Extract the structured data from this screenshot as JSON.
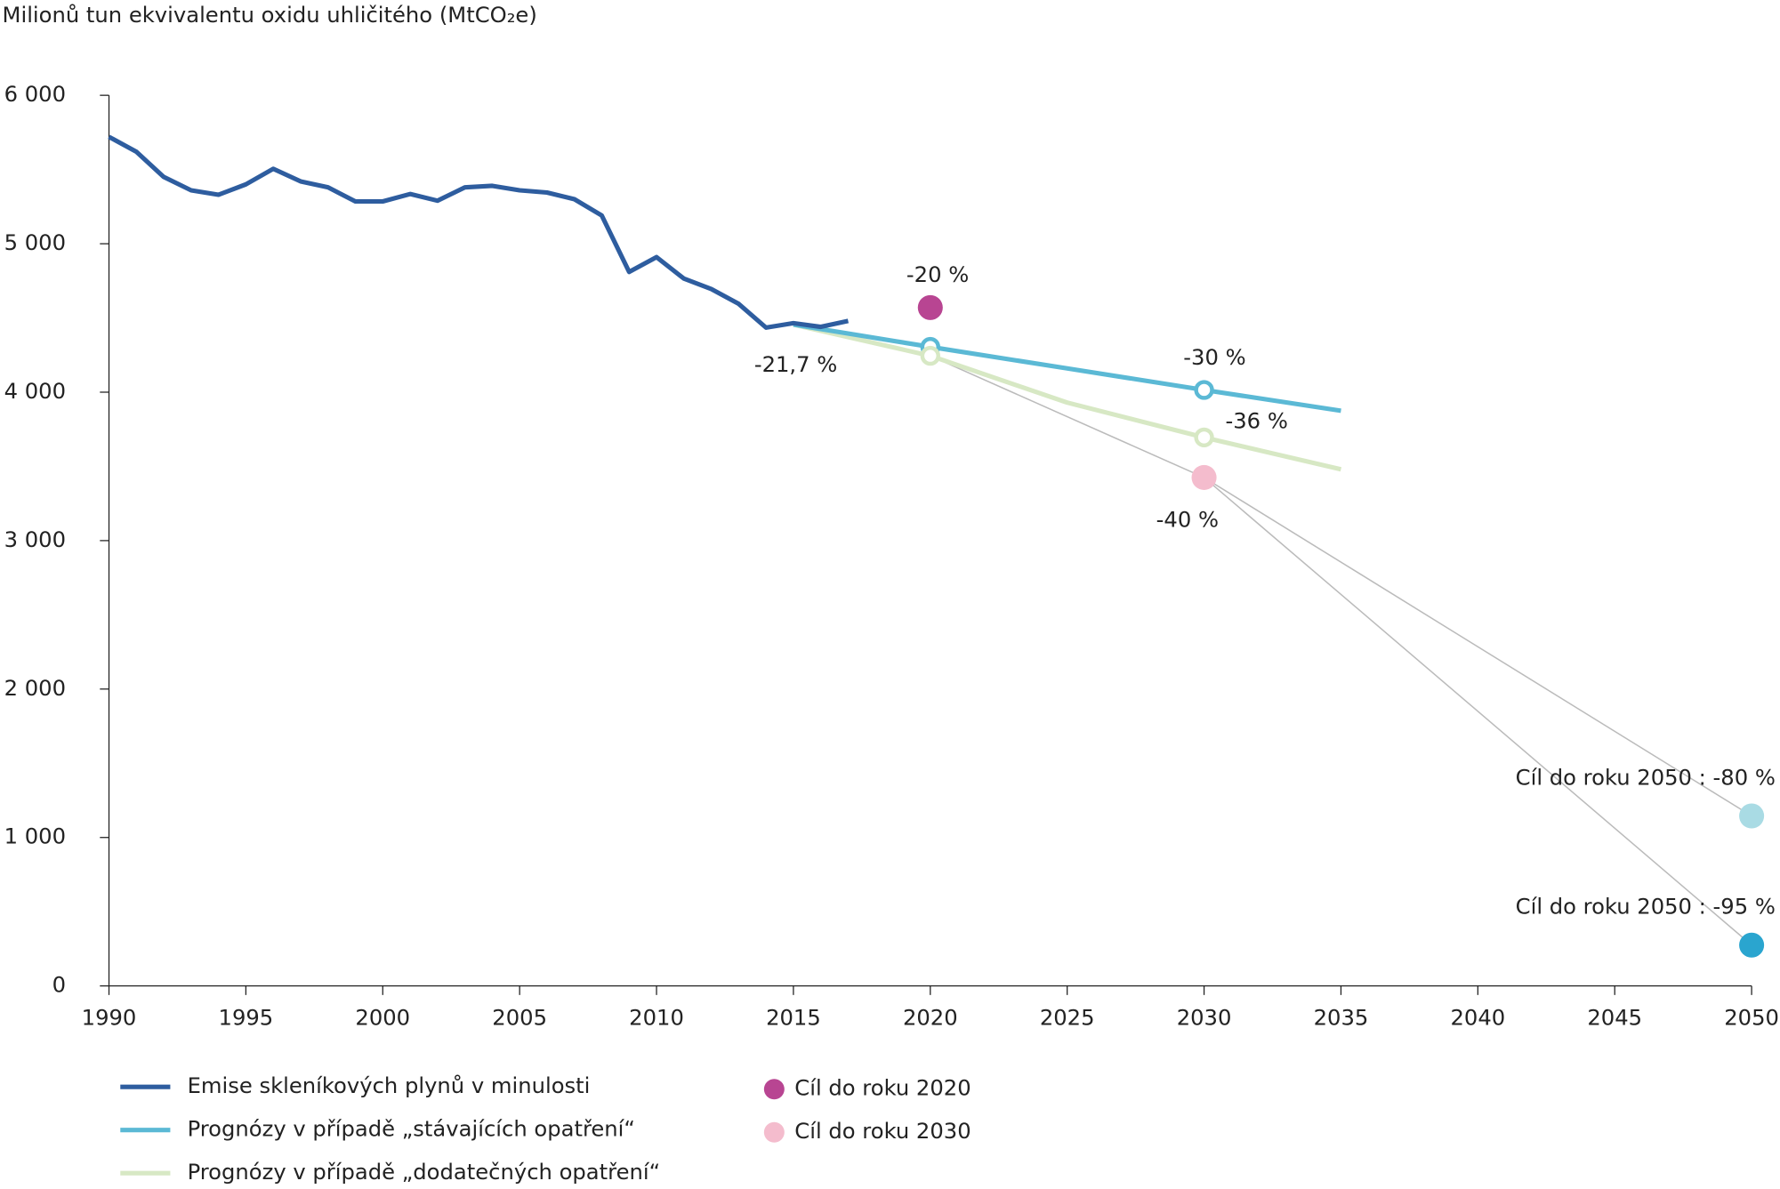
{
  "chart_data": {
    "type": "line",
    "title": "Milionů tun ekvivalentu oxidu uhličitého (MtCO₂e)",
    "xlim": [
      1990,
      2050
    ],
    "xticks": [
      1990,
      1995,
      2000,
      2005,
      2010,
      2015,
      2020,
      2025,
      2030,
      2035,
      2040,
      2045,
      2050
    ],
    "ylim": [
      0,
      6000
    ],
    "yticks": [
      0,
      {
        "value": 1000,
        "label": "1 000"
      },
      {
        "value": 2000,
        "label": "2 000"
      },
      {
        "value": 3000,
        "label": "3 000"
      },
      {
        "value": 4000,
        "label": "4 000"
      },
      {
        "value": 5000,
        "label": "5 000"
      },
      {
        "value": 6000,
        "label": "6 000"
      }
    ],
    "series": [
      {
        "name": "Emise skleníkových plynů v minulosti",
        "color": "#2e5d9f",
        "x": [
          1990,
          1991,
          1992,
          1993,
          1994,
          1995,
          1996,
          1997,
          1998,
          1999,
          2000,
          2001,
          2002,
          2003,
          2004,
          2005,
          2006,
          2007,
          2008,
          2009,
          2010,
          2011,
          2012,
          2013,
          2014,
          2015,
          2016,
          2017
        ],
        "values": [
          5720,
          5620,
          5450,
          5360,
          5330,
          5400,
          5505,
          5420,
          5380,
          5285,
          5285,
          5335,
          5290,
          5380,
          5390,
          5360,
          5345,
          5300,
          5190,
          4810,
          4910,
          4765,
          4695,
          4595,
          4435,
          4465,
          4440,
          4480
        ]
      },
      {
        "name": "Prognózy v případě „stávajících opatření“",
        "color": "#5bb9d5",
        "x": [
          2015,
          2020,
          2025,
          2030,
          2035
        ],
        "values": [
          4455,
          4305,
          4160,
          4015,
          3875
        ]
      },
      {
        "name": "Prognózy v případě „dodatečných opatření“",
        "color": "#d7e8c4",
        "x": [
          2015,
          2020,
          2025,
          2030,
          2035
        ],
        "values": [
          4455,
          4245,
          3930,
          3695,
          3480
        ]
      }
    ],
    "targets": [
      {
        "name": "Cíl do roku 2020",
        "color": "#b84592",
        "x": 2020,
        "value": 4570
      },
      {
        "name": "Cíl do roku 2030",
        "color": "#f4bccd",
        "x": 2030,
        "value": 3425
      }
    ],
    "targets_2050": [
      {
        "label": "Cíl do roku 2050 : -80 %",
        "color": "#a9dbe4",
        "x": 2050,
        "value": 1145
      },
      {
        "label": "Cíl do roku 2050 : -95 %",
        "color": "#2aa5cf",
        "x": 2050,
        "value": 275
      }
    ],
    "annotations": [
      "-21,7 %",
      "-20 %",
      "-30 %",
      "-36 %",
      "-40 %"
    ]
  }
}
